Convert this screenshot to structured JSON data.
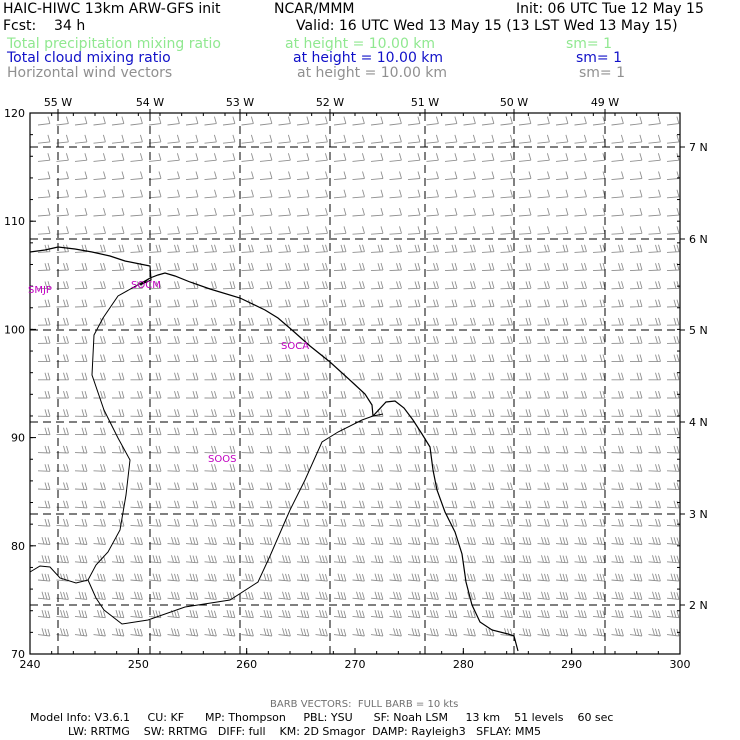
{
  "header": {
    "model": "HAIC-HIWC 13km ARW-GFS init",
    "center": "NCAR/MMM",
    "init": "Init: 06 UTC Tue 12 May 15",
    "fcst": "Fcst:    34 h",
    "valid": "Valid: 16 UTC Wed 13 May 15 (13 LST Wed 13 May 15)",
    "fields": [
      {
        "name": "Total precipitation mixing ratio",
        "height": "at height = 10.00 km",
        "sm": "sm= 1",
        "color": "#90e890"
      },
      {
        "name": "Total cloud mixing ratio",
        "height": "at height = 10.00 km",
        "sm": "sm= 1",
        "color": "#1010c8"
      },
      {
        "name": "Horizontal wind vectors",
        "height": "at height = 10.00 km",
        "sm": "sm= 1",
        "color": "#909090"
      }
    ]
  },
  "map": {
    "x_ticks": [
      "240",
      "250",
      "260",
      "270",
      "280",
      "290",
      "300"
    ],
    "y_ticks": [
      "70",
      "80",
      "90",
      "100",
      "110",
      "120"
    ],
    "lon_labels": [
      "55 W",
      "54 W",
      "53 W",
      "52 W",
      "51 W",
      "50 W",
      "49 W"
    ],
    "lat_labels": [
      "7 N",
      "6 N",
      "5 N",
      "4 N",
      "3 N",
      "2 N"
    ],
    "stations": [
      "SMJP",
      "SOCM",
      "SOCA",
      "SOOS"
    ],
    "coast_color": "#000000",
    "barb_color": "#909090",
    "station_color": "#c000c0"
  },
  "footer": {
    "barb": "BARB VECTORS:  FULL BARB = 10 kts",
    "line1": "Model Info: V3.6.1     CU: KF      MP: Thompson     PBL: YSU      SF: Noah LSM     13 km    51 levels    60 sec",
    "line2": "LW: RRTMG    SW: RRTMG   DIFF: full    KM: 2D Smagor  DAMP: Rayleigh3   SFLAY: MM5"
  }
}
